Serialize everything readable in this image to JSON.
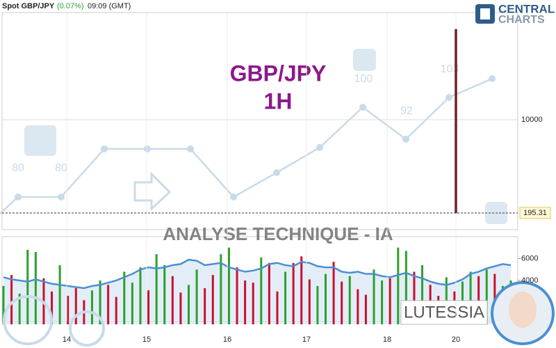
{
  "header": {
    "symbol": "Spot GBP/JPY",
    "change": "(0.07%)",
    "time": "09:09 (GMT)"
  },
  "logo": {
    "line1": "CENTRAL",
    "line2": "CHARTS"
  },
  "overlay": {
    "title": "GBP/JPY",
    "timeframe": "1H",
    "banner": "ANALYSE TECHNIQUE - IA",
    "brand": "LUTESSIA",
    "scores": [
      "80",
      "80",
      "100",
      "92",
      "103"
    ]
  },
  "chart_data": [
    {
      "type": "candlestick",
      "categories": [
        "14",
        "15",
        "16",
        "17",
        "18",
        "20"
      ],
      "ylim": [
        -1560,
        21270
      ],
      "yticks": [
        10000
      ],
      "last_price": 195.31,
      "candles": [
        {
          "high": 19510,
          "low": 195.31
        }
      ],
      "color": "#8b1a1a",
      "grid": true
    },
    {
      "type": "bar",
      "ylim": [
        0,
        8000
      ],
      "yticks": [
        4000,
        6000
      ],
      "values": [
        3500,
        4500,
        2800,
        6800,
        6600,
        4200,
        3000,
        5400,
        2600,
        3300,
        2200,
        3100,
        4000,
        3600,
        2500,
        4800,
        3800,
        5200,
        3100,
        6400,
        5400,
        4400,
        2900,
        3600,
        5000,
        3300,
        4500,
        6400,
        7000,
        5200,
        4000,
        3800,
        6100,
        5600,
        3000,
        4800,
        5600,
        6200,
        4100,
        3500,
        4600,
        5700,
        3900,
        4400,
        3200,
        2700,
        5000,
        4000,
        4200,
        7000,
        6700,
        4800,
        5400,
        3600,
        2600,
        4300,
        3000,
        3900,
        4800,
        4400,
        5000,
        4600,
        3500,
        4000
      ],
      "colors": [
        "#2ca02c",
        "#c8102e",
        "#2ca02c",
        "#2ca02c",
        "#2ca02c",
        "#c8102e",
        "#c8102e",
        "#2ca02c",
        "#c8102e",
        "#c8102e",
        "#c8102e",
        "#2ca02c",
        "#2ca02c",
        "#c8102e",
        "#c8102e",
        "#2ca02c",
        "#2ca02c",
        "#2ca02c",
        "#c8102e",
        "#2ca02c",
        "#2ca02c",
        "#c8102e",
        "#c8102e",
        "#2ca02c",
        "#2ca02c",
        "#c8102e",
        "#c8102e",
        "#2ca02c",
        "#2ca02c",
        "#c8102e",
        "#c8102e",
        "#c8102e",
        "#2ca02c",
        "#c8102e",
        "#c8102e",
        "#2ca02c",
        "#c8102e",
        "#c8102e",
        "#c8102e",
        "#2ca02c",
        "#2ca02c",
        "#c8102e",
        "#c8102e",
        "#2ca02c",
        "#c8102e",
        "#c8102e",
        "#2ca02c",
        "#2ca02c",
        "#c8102e",
        "#2ca02c",
        "#2ca02c",
        "#c8102e",
        "#2ca02c",
        "#c8102e",
        "#c8102e",
        "#2ca02c",
        "#c8102e",
        "#2ca02c",
        "#2ca02c",
        "#c8102e",
        "#2ca02c",
        "#c8102e",
        "#2ca02c",
        "#2ca02c"
      ],
      "ma": [
        4300,
        4100,
        4000,
        3900,
        4100,
        3900,
        3700,
        3600,
        3500,
        3400,
        3300,
        3500,
        3600,
        3800,
        4000,
        4300,
        4600,
        5000,
        5200,
        5100,
        5200,
        5400,
        5500,
        5900,
        5800,
        5400,
        5500,
        5600,
        5200,
        5000,
        4800,
        4900,
        5100,
        5500,
        5600,
        5400,
        5300,
        5700,
        5600,
        5300,
        5200,
        5200,
        4800,
        4700,
        4800,
        4600,
        4600,
        4400,
        4300,
        4500,
        4700,
        4400,
        4200,
        3900,
        3700,
        3600,
        3800,
        4100,
        4600,
        4800,
        5100,
        5300,
        5500,
        5400
      ],
      "ma_color": "#4a8fd0"
    }
  ]
}
